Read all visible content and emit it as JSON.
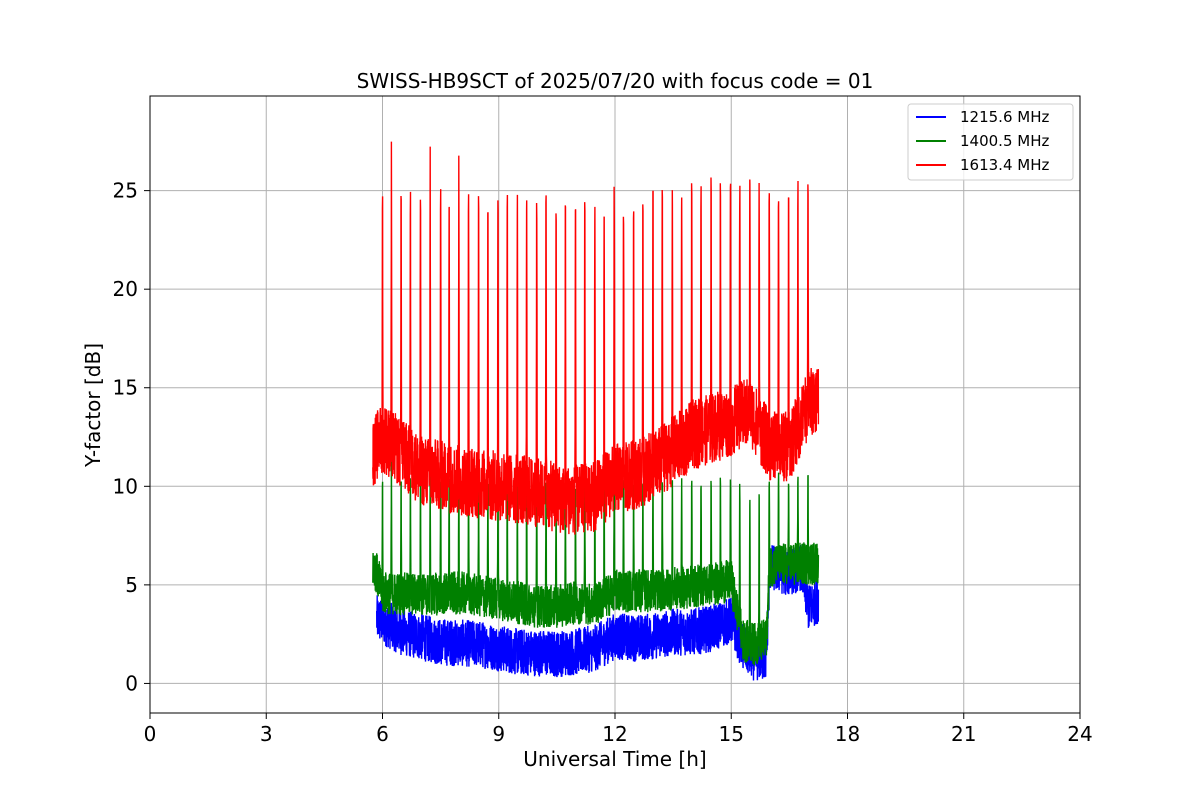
{
  "chart_data": {
    "type": "line",
    "title": "SWISS-HB9SCT of 2025/07/20 with focus code = 01",
    "xlabel": "Universal Time [h]",
    "ylabel": "Y-factor [dB]",
    "xlim": [
      0,
      24
    ],
    "ylim": [
      -1.5,
      29.8
    ],
    "xticks": [
      0,
      3,
      6,
      9,
      12,
      15,
      18,
      21,
      24
    ],
    "yticks": [
      0,
      5,
      10,
      15,
      20,
      25
    ],
    "grid": true,
    "legend_position": "top-right",
    "data_start_h": 5.75,
    "data_end_h": 17.25,
    "series": [
      {
        "name": "1215.6 MHz",
        "color": "#0000ff",
        "baseline_points": [
          [
            5.85,
            3.3
          ],
          [
            6.5,
            2.6
          ],
          [
            7.5,
            2.1
          ],
          [
            8.5,
            2.0
          ],
          [
            9.5,
            1.6
          ],
          [
            10.5,
            1.5
          ],
          [
            11.0,
            1.6
          ],
          [
            11.5,
            1.8
          ],
          [
            12.0,
            2.4
          ],
          [
            12.5,
            2.3
          ],
          [
            13.0,
            2.4
          ],
          [
            13.5,
            2.6
          ],
          [
            14.0,
            2.6
          ],
          [
            14.5,
            2.8
          ],
          [
            15.0,
            3.2
          ],
          [
            15.3,
            1.8
          ],
          [
            15.6,
            1.3
          ],
          [
            15.9,
            1.3
          ],
          [
            16.0,
            5.9
          ],
          [
            16.5,
            5.6
          ],
          [
            16.8,
            5.9
          ],
          [
            17.0,
            3.8
          ],
          [
            17.2,
            4.2
          ]
        ],
        "noise_amplitude": 1.2
      },
      {
        "name": "1400.5 MHz",
        "color": "#008000",
        "baseline_points": [
          [
            5.75,
            6.2
          ],
          [
            6.0,
            4.6
          ],
          [
            7.0,
            4.5
          ],
          [
            8.0,
            4.6
          ],
          [
            9.0,
            4.3
          ],
          [
            10.0,
            3.9
          ],
          [
            10.5,
            3.9
          ],
          [
            11.0,
            4.1
          ],
          [
            11.5,
            4.0
          ],
          [
            12.0,
            4.7
          ],
          [
            13.0,
            4.7
          ],
          [
            14.0,
            4.9
          ],
          [
            15.0,
            5.2
          ],
          [
            15.3,
            2.2
          ],
          [
            15.6,
            2.0
          ],
          [
            15.9,
            2.2
          ],
          [
            16.0,
            6.0
          ],
          [
            17.2,
            6.1
          ]
        ],
        "noise_amplitude": 1.1,
        "spike_peak": 11.5
      },
      {
        "name": "1613.4 MHz",
        "color": "#ff0000",
        "baseline_points": [
          [
            5.75,
            11.7
          ],
          [
            6.0,
            12.5
          ],
          [
            7.0,
            10.8
          ],
          [
            8.0,
            10.3
          ],
          [
            9.0,
            10.0
          ],
          [
            10.0,
            9.7
          ],
          [
            10.5,
            9.4
          ],
          [
            11.0,
            9.3
          ],
          [
            11.5,
            9.5
          ],
          [
            12.0,
            10.4
          ],
          [
            12.5,
            10.6
          ],
          [
            13.0,
            11.0
          ],
          [
            14.0,
            12.6
          ],
          [
            15.0,
            13.3
          ],
          [
            15.5,
            13.8
          ],
          [
            16.0,
            12.0
          ],
          [
            16.5,
            12.0
          ],
          [
            17.0,
            14.2
          ],
          [
            17.2,
            14.6
          ]
        ],
        "noise_amplitude": 1.8,
        "spike_peak": 28.0
      }
    ],
    "spike_times_h": [
      6.0,
      6.23,
      6.48,
      6.72,
      6.98,
      7.23,
      7.5,
      7.72,
      7.97,
      8.22,
      8.48,
      8.72,
      8.98,
      9.22,
      9.48,
      9.72,
      9.98,
      10.22,
      10.48,
      10.72,
      10.98,
      11.22,
      11.48,
      11.72,
      11.98,
      12.22,
      12.48,
      12.72,
      12.98,
      13.22,
      13.48,
      13.72,
      13.98,
      14.22,
      14.48,
      14.72,
      14.98,
      15.22,
      15.48,
      15.72,
      15.98,
      16.22,
      16.48,
      16.72,
      16.98
    ]
  }
}
